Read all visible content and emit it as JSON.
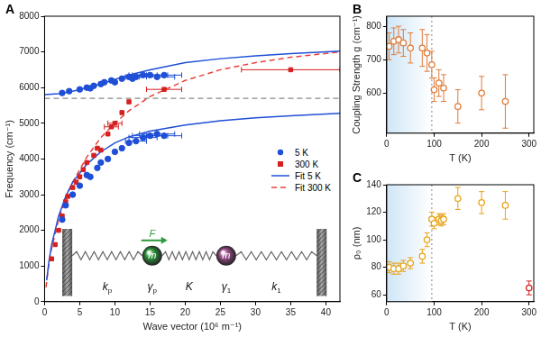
{
  "chart_data": [
    {
      "type": "scatter",
      "title": "A",
      "x_label": "Wave vector (10⁶ m⁻¹)",
      "y_label": "Frequency (cm⁻¹)",
      "xlim": [
        0,
        42
      ],
      "xticks": [
        0,
        5,
        10,
        15,
        20,
        25,
        30,
        35,
        40
      ],
      "ylim": [
        0,
        8000
      ],
      "yticks": [
        0,
        1000,
        2000,
        3000,
        4000,
        5000,
        6000,
        7000,
        8000
      ],
      "grid": false,
      "legend": "right",
      "series": [
        {
          "name": "5 K",
          "type": "scatter",
          "color": "#1f4fd6",
          "marker": "circle",
          "x": [
            2.5,
            3.5,
            5,
            6,
            6.5,
            7,
            8,
            8.5,
            9.5,
            10,
            11,
            12,
            12.5,
            13,
            14,
            15,
            16,
            17,
            2.5,
            3,
            4,
            5,
            6,
            6.5,
            7.5,
            8,
            9,
            10,
            11,
            12,
            13,
            14,
            15,
            16,
            17
          ],
          "values": [
            5850,
            5900,
            5950,
            6000,
            5980,
            6050,
            6100,
            6150,
            6200,
            6150,
            6250,
            6300,
            6250,
            6300,
            6350,
            6350,
            6300,
            6350,
            2300,
            2700,
            3000,
            3250,
            3550,
            3500,
            3750,
            3900,
            4000,
            4200,
            4300,
            4450,
            4500,
            4600,
            4650,
            4700,
            4650
          ],
          "x_errors": [
            null,
            null,
            null,
            null,
            null,
            null,
            null,
            null,
            null,
            null,
            null,
            null,
            null,
            1.5,
            2,
            2.5,
            2.5,
            2.5,
            null,
            null,
            null,
            null,
            null,
            null,
            null,
            null,
            null,
            null,
            null,
            null,
            1.5,
            2,
            2.5,
            2.5,
            2.5
          ]
        },
        {
          "name": "300 K",
          "type": "scatter",
          "color": "#d62020",
          "marker": "square",
          "x": [
            1,
            1.5,
            2,
            2.5,
            3,
            3.3,
            4,
            4.5,
            5,
            5.5,
            6,
            7,
            7.5,
            8,
            9,
            9.5,
            10,
            11,
            12,
            17,
            35
          ],
          "values": [
            1200,
            1600,
            2000,
            2400,
            2800,
            2950,
            3200,
            3350,
            3500,
            3700,
            3900,
            4100,
            4300,
            4250,
            4700,
            4900,
            5000,
            5300,
            5600,
            5950,
            6500
          ],
          "x_errors": [
            null,
            null,
            null,
            null,
            null,
            null,
            null,
            null,
            null,
            null,
            null,
            null,
            null,
            null,
            null,
            1,
            1,
            null,
            null,
            2.5,
            7
          ]
        },
        {
          "name": "Fit 5 K",
          "type": "line",
          "color": "#1f4fd6",
          "line_style": "solid",
          "x": [
            0,
            2,
            4,
            6,
            8,
            10,
            12,
            15,
            20,
            25,
            30,
            35,
            42,
            0,
            0.3,
            0.6,
            1,
            1.5,
            2,
            3,
            4,
            6,
            8,
            10,
            12,
            15,
            20,
            25,
            30,
            35,
            42
          ],
          "values": [
            5800,
            5830,
            5900,
            5990,
            6100,
            6230,
            6350,
            6500,
            6700,
            6810,
            6890,
            6950,
            7020,
            null,
            600,
            1100,
            1600,
            2000,
            2400,
            2950,
            3350,
            3850,
            4200,
            4450,
            4620,
            4780,
            4950,
            5070,
            5150,
            5210,
            5280
          ]
        },
        {
          "name": "Fit 300 K",
          "type": "line",
          "color": "#e8413c",
          "line_style": "dashed",
          "x": [
            0.2,
            0.5,
            1,
            1.5,
            2,
            3,
            4,
            6,
            8,
            10,
            12,
            15,
            20,
            25,
            30,
            35,
            42
          ],
          "values": [
            400,
            900,
            1500,
            1900,
            2300,
            2900,
            3350,
            4050,
            4600,
            5000,
            5350,
            5750,
            6200,
            6500,
            6700,
            6850,
            7000
          ]
        }
      ],
      "annotations": [
        {
          "type": "hline",
          "y": 5700,
          "color": "#8a8a8a",
          "line_style": "dashed"
        }
      ],
      "diagram": {
        "force": "F",
        "force_color": "#2e9a3e",
        "masses": [
          {
            "label": "m",
            "color": "#2e9a3e"
          },
          {
            "label": "m",
            "color": "#a0508f"
          }
        ],
        "springs": [
          {
            "symbol": "k",
            "sub": "p"
          },
          {
            "symbol": "K"
          },
          {
            "symbol": "k",
            "sub": "1"
          }
        ],
        "dampers": [
          {
            "symbol": "γ",
            "sub": "p"
          },
          {
            "symbol": "γ",
            "sub": "1"
          }
        ]
      }
    },
    {
      "type": "scatter",
      "title": "B",
      "x_label": "T (K)",
      "y_label": "Coupling Strength g (cm⁻¹)",
      "xlim": [
        0,
        310
      ],
      "xticks": [
        0,
        100,
        200,
        300
      ],
      "ylim": [
        480,
        830
      ],
      "yticks": [
        600,
        700,
        800
      ],
      "grid": false,
      "series": [
        {
          "type": "scatter",
          "color": "#e07b39",
          "marker": "circle_open",
          "x": [
            5,
            15,
            25,
            35,
            50,
            75,
            85,
            95,
            100,
            110,
            120,
            150,
            200,
            250
          ],
          "values": [
            740,
            755,
            760,
            750,
            735,
            735,
            720,
            685,
            610,
            630,
            615,
            560,
            600,
            575
          ],
          "y_errors": [
            40,
            40,
            40,
            40,
            45,
            55,
            55,
            40,
            35,
            40,
            40,
            50,
            50,
            80
          ]
        }
      ],
      "annotations": [
        {
          "type": "shade",
          "x": [
            0,
            95
          ],
          "color": "#cfe6f7"
        },
        {
          "type": "vline",
          "x": 95,
          "color": "#999999",
          "line_style": "dotted"
        }
      ]
    },
    {
      "type": "scatter",
      "title": "C",
      "x_label": "T (K)",
      "y_label": "ρ₀ (nm)",
      "xlim": [
        0,
        310
      ],
      "xticks": [
        0,
        100,
        200,
        300
      ],
      "ylim": [
        55,
        140
      ],
      "yticks": [
        60,
        80,
        100,
        120,
        140
      ],
      "grid": false,
      "series": [
        {
          "type": "scatter",
          "marker": "circle_open",
          "colors": [
            "#e8a317",
            "#e8a317",
            "#e8a317",
            "#e8a317",
            "#e8a317",
            "#e8a317",
            "#e8a317",
            "#e8a317",
            "#e8a317",
            "#e8a317",
            "#e8a317",
            "#e8a317",
            "#e8a317",
            "#e8a317",
            "#e8a317",
            "#d62020"
          ],
          "x": [
            5,
            15,
            25,
            35,
            50,
            75,
            85,
            95,
            100,
            110,
            115,
            120,
            150,
            200,
            250,
            300
          ],
          "values": [
            80,
            79,
            79,
            81,
            83,
            88,
            100,
            115,
            112,
            115,
            114,
            115,
            130,
            127,
            125,
            65
          ],
          "y_errors": [
            4,
            4,
            4,
            4,
            4,
            5,
            5,
            5,
            4,
            4,
            4,
            4,
            8,
            8,
            10,
            5
          ]
        }
      ],
      "annotations": [
        {
          "type": "shade",
          "x": [
            0,
            95
          ],
          "color": "#cfe6f7"
        },
        {
          "type": "vline",
          "x": 95,
          "color": "#999999",
          "line_style": "dotted"
        }
      ]
    }
  ]
}
